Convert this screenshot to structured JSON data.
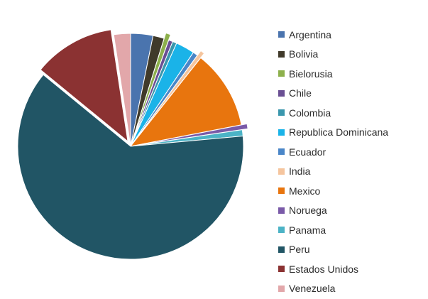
{
  "chart_data": {
    "type": "pie",
    "title": "",
    "legend_position": "right",
    "slices": [
      {
        "label": "Argentina",
        "value": 3.2,
        "color": "#4a74ae",
        "exploded": false
      },
      {
        "label": "Bolivia",
        "value": 1.6,
        "color": "#403a2a",
        "exploded": false
      },
      {
        "label": "Bielorusia",
        "value": 0.7,
        "color": "#8db04c",
        "exploded": true
      },
      {
        "label": "Chile",
        "value": 0.6,
        "color": "#6a4f93",
        "exploded": false
      },
      {
        "label": "Colombia",
        "value": 0.6,
        "color": "#3a97ad",
        "exploded": false
      },
      {
        "label": "Republica Dominicana",
        "value": 2.7,
        "color": "#1ab3e8",
        "exploded": false
      },
      {
        "label": "Ecuador",
        "value": 0.7,
        "color": "#4a86c8",
        "exploded": false
      },
      {
        "label": "India",
        "value": 0.6,
        "color": "#f5c59e",
        "exploded": true
      },
      {
        "label": "Mexico",
        "value": 11.3,
        "color": "#e8750e",
        "exploded": false
      },
      {
        "label": "Noruega",
        "value": 0.7,
        "color": "#7a5aa8",
        "exploded": true
      },
      {
        "label": "Panama",
        "value": 0.9,
        "color": "#4cb3c6",
        "exploded": false
      },
      {
        "label": "Peru",
        "value": 62.5,
        "color": "#215565",
        "exploded": false
      },
      {
        "label": "Estados Unidos",
        "value": 11.7,
        "color": "#8b3232",
        "exploded": true
      },
      {
        "label": "Venezuela",
        "value": 2.4,
        "color": "#e2a7aa",
        "exploded": false
      }
    ]
  }
}
